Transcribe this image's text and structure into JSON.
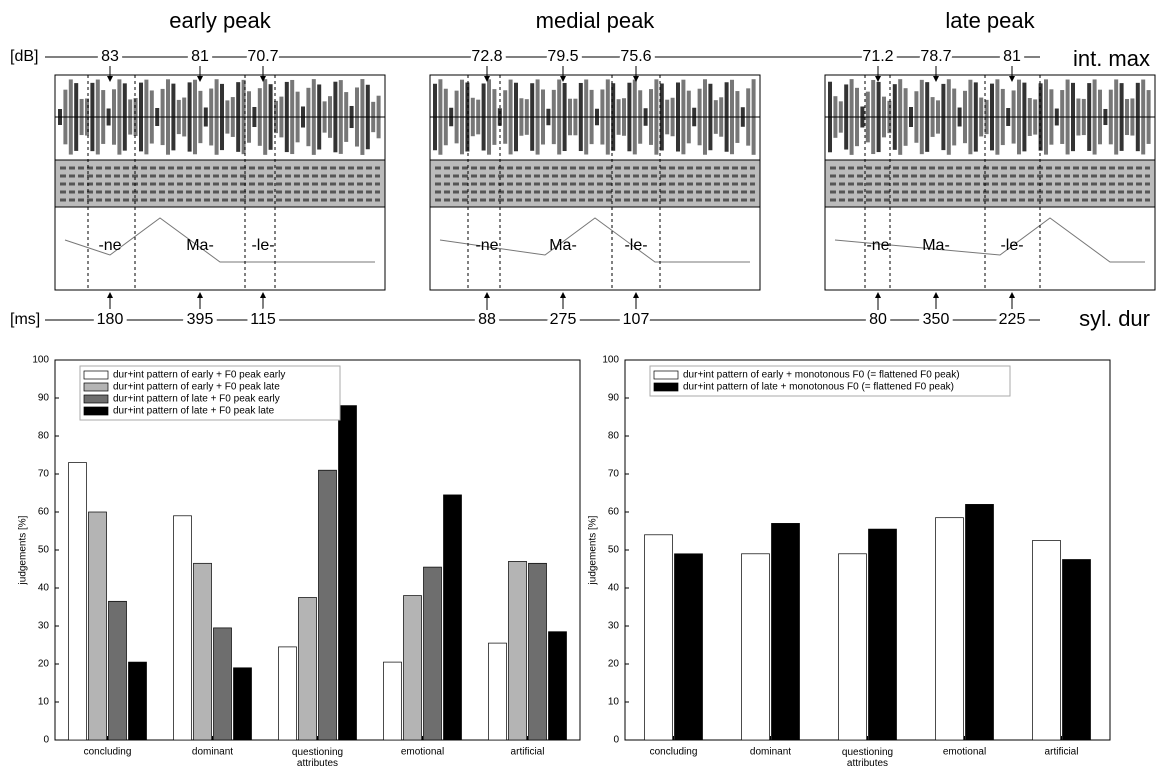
{
  "figure": {
    "int_unit": "[dB]",
    "int_label": "int. max",
    "dur_unit": "[ms]",
    "dur_label": "syl. dur",
    "panels": [
      {
        "title": "early peak",
        "int_max": [
          83,
          81,
          70.7
        ],
        "syl_dur": [
          180,
          395,
          115
        ],
        "syllables": [
          "-ne",
          "Ma-",
          "-le-"
        ]
      },
      {
        "title": "medial peak",
        "int_max": [
          72.8,
          79.5,
          75.6
        ],
        "syl_dur": [
          88,
          275,
          107
        ],
        "syllables": [
          "-ne",
          "Ma-",
          "-le-"
        ]
      },
      {
        "title": "late peak",
        "int_max": [
          71.2,
          78.7,
          81
        ],
        "syl_dur": [
          80,
          350,
          225
        ],
        "syllables": [
          "-ne",
          "Ma-",
          "-le-"
        ]
      }
    ]
  },
  "chart_data": [
    {
      "type": "bar",
      "ylabel": "judgements [%]",
      "categories": [
        "concluding",
        "dominant",
        "questioning attributes",
        "emotional",
        "artificial"
      ],
      "series": [
        {
          "name": "dur+int pattern of early + F0 peak early",
          "color": "#ffffff",
          "values": [
            73,
            59,
            24.5,
            20.5,
            25.5
          ]
        },
        {
          "name": "dur+int pattern of early + F0 peak late",
          "color": "#b4b4b4",
          "values": [
            60,
            46.5,
            37.5,
            38,
            47
          ]
        },
        {
          "name": "dur+int pattern of late + F0 peak early",
          "color": "#6e6e6e",
          "values": [
            36.5,
            29.5,
            71,
            45.5,
            46.5
          ]
        },
        {
          "name": "dur+int pattern of late + F0 peak late",
          "color": "#000000",
          "values": [
            20.5,
            19,
            88,
            64.5,
            28.5
          ]
        }
      ],
      "ylim": [
        0,
        100
      ],
      "yticks": [
        0,
        10,
        20,
        30,
        40,
        50,
        60,
        70,
        80,
        90,
        100
      ],
      "legend": "upper left"
    },
    {
      "type": "bar",
      "ylabel": "judgements [%]",
      "categories": [
        "concluding",
        "dominant",
        "questioning attributes",
        "emotional",
        "artificial"
      ],
      "series": [
        {
          "name": "dur+int pattern of early + monotonous F0 (= flattened F0 peak)",
          "color": "#ffffff",
          "values": [
            54,
            49,
            49,
            58.5,
            52.5
          ]
        },
        {
          "name": "dur+int pattern of late + monotonous F0 (= flattened F0 peak)",
          "color": "#000000",
          "values": [
            49,
            57,
            55.5,
            62,
            47.5
          ]
        }
      ],
      "ylim": [
        0,
        100
      ],
      "yticks": [
        0,
        10,
        20,
        30,
        40,
        50,
        60,
        70,
        80,
        90,
        100
      ],
      "legend": "upper left"
    }
  ]
}
